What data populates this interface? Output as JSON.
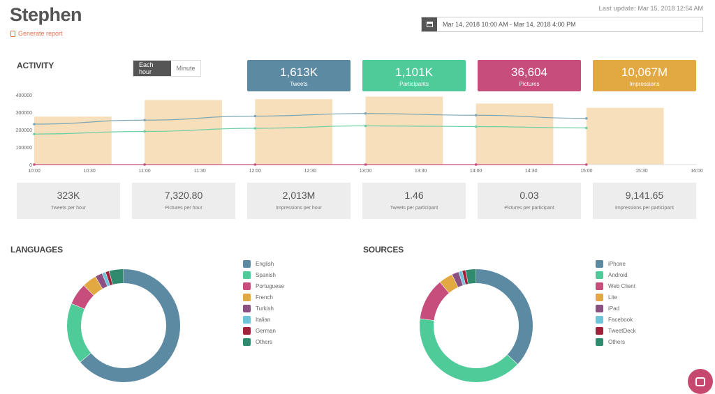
{
  "header": {
    "title": "Stephen",
    "generate_report": "Generate report",
    "last_update_label": "Last update:",
    "last_update_value": "Mar 15, 2018 12:54 AM",
    "date_range": "Mar 14, 2018 10:00 AM - Mar 14, 2018 4:00 PM"
  },
  "activity": {
    "title": "ACTIVITY",
    "toggle": [
      "Each hour",
      "Minute"
    ],
    "kpis": [
      {
        "value": "1,613K",
        "label": "Tweets",
        "color": "#5d8aa3"
      },
      {
        "value": "1,101K",
        "label": "Participants",
        "color": "#4ecb98"
      },
      {
        "value": "36,604",
        "label": "Pictures",
        "color": "#c64d7c"
      },
      {
        "value": "10,067M",
        "label": "Impressions",
        "color": "#e2a842"
      }
    ],
    "stats": [
      {
        "value": "323K",
        "label": "Tweets per hour"
      },
      {
        "value": "7,320.80",
        "label": "Pictures per hour"
      },
      {
        "value": "2,013M",
        "label": "Impressions per hour"
      },
      {
        "value": "1.46",
        "label": "Tweets per participant"
      },
      {
        "value": "0.03",
        "label": "Pictures per participant"
      },
      {
        "value": "9,141.65",
        "label": "Impressions per participant"
      }
    ]
  },
  "chart_data": {
    "type": "bar",
    "x_ticks": [
      "10:00",
      "10:30",
      "11:00",
      "11:30",
      "12:00",
      "12:30",
      "13:00",
      "13:30",
      "14:00",
      "14:30",
      "15:00",
      "15:30",
      "16:00"
    ],
    "y_ticks": [
      "0",
      "100000",
      "200000",
      "300000",
      "400000"
    ],
    "ylim": [
      0,
      400000
    ],
    "bars": [
      {
        "start": "10:00",
        "value": 275000
      },
      {
        "start": "11:00",
        "value": 370000
      },
      {
        "start": "12:00",
        "value": 375000
      },
      {
        "start": "13:00",
        "value": 390000
      },
      {
        "start": "14:00",
        "value": 350000
      },
      {
        "start": "15:00",
        "value": 325000
      }
    ],
    "bar_color": "#f6dfba",
    "lines": [
      {
        "color": "#7fa6b5",
        "x": [
          "10:00",
          "11:00",
          "12:00",
          "13:00",
          "14:00",
          "15:00"
        ],
        "values": [
          232000,
          255000,
          278000,
          293000,
          283000,
          265000
        ]
      },
      {
        "color": "#6fcfa4",
        "x": [
          "10:00",
          "11:00",
          "12:00",
          "13:00",
          "14:00",
          "15:00"
        ],
        "values": [
          175000,
          190000,
          208000,
          222000,
          218000,
          210000
        ]
      },
      {
        "color": "#c64d7c",
        "x": [
          "10:00",
          "11:00",
          "12:00",
          "13:00",
          "14:00",
          "15:00"
        ],
        "values": [
          0,
          0,
          0,
          0,
          0,
          0
        ]
      }
    ]
  },
  "languages": {
    "title": "LANGUAGES",
    "items": [
      {
        "label": "English",
        "value": 62,
        "color": "#5d8aa3"
      },
      {
        "label": "Spanish",
        "value": 17,
        "color": "#4ecb98"
      },
      {
        "label": "Portuguese",
        "value": 6,
        "color": "#c64d7c"
      },
      {
        "label": "French",
        "value": 4,
        "color": "#e2a842"
      },
      {
        "label": "Turkish",
        "value": 2,
        "color": "#8b4f82"
      },
      {
        "label": "Italian",
        "value": 1,
        "color": "#6ec2d9"
      },
      {
        "label": "German",
        "value": 1,
        "color": "#a3203a"
      },
      {
        "label": "Others",
        "value": 4,
        "color": "#2f8a6e"
      }
    ]
  },
  "sources": {
    "title": "SOURCES",
    "items": [
      {
        "label": "iPhone",
        "value": 37,
        "color": "#5d8aa3"
      },
      {
        "label": "Android",
        "value": 40,
        "color": "#4ecb98"
      },
      {
        "label": "Web Client",
        "value": 12,
        "color": "#c64d7c"
      },
      {
        "label": "Lite",
        "value": 4,
        "color": "#e2a842"
      },
      {
        "label": "iPad",
        "value": 2,
        "color": "#8b4f82"
      },
      {
        "label": "Facebook",
        "value": 1,
        "color": "#6ec2d9"
      },
      {
        "label": "TweetDeck",
        "value": 1,
        "color": "#a3203a"
      },
      {
        "label": "Others",
        "value": 3,
        "color": "#2f8a6e"
      }
    ]
  }
}
